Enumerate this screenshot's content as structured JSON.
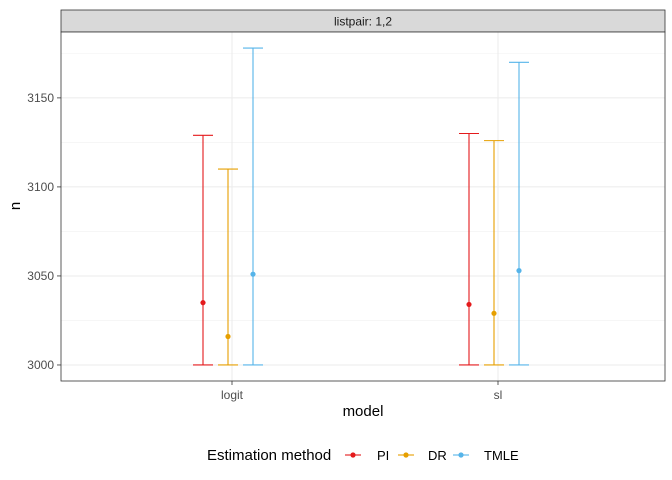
{
  "chart_data": {
    "type": "errorbar",
    "facet_label": "listpair: 1,2",
    "xlabel": "model",
    "ylabel": "n",
    "categories": [
      "logit",
      "sl"
    ],
    "ylim": [
      2991,
      3187
    ],
    "yticks": [
      3000,
      3050,
      3100,
      3150
    ],
    "grid": true,
    "legend": {
      "title": "Estimation method",
      "position": "bottom"
    },
    "series": [
      {
        "name": "PI",
        "color": "#e41a1c",
        "estimates": [
          3035,
          3034
        ],
        "lower": [
          3000,
          3000
        ],
        "upper": [
          3129,
          3130
        ]
      },
      {
        "name": "DR",
        "color": "#e69f00",
        "estimates": [
          3016,
          3029
        ],
        "lower": [
          3000,
          3000
        ],
        "upper": [
          3110,
          3126
        ]
      },
      {
        "name": "TMLE",
        "color": "#56b4e9",
        "estimates": [
          3051,
          3053
        ],
        "lower": [
          3000,
          3000
        ],
        "upper": [
          3178,
          3170
        ]
      }
    ]
  }
}
